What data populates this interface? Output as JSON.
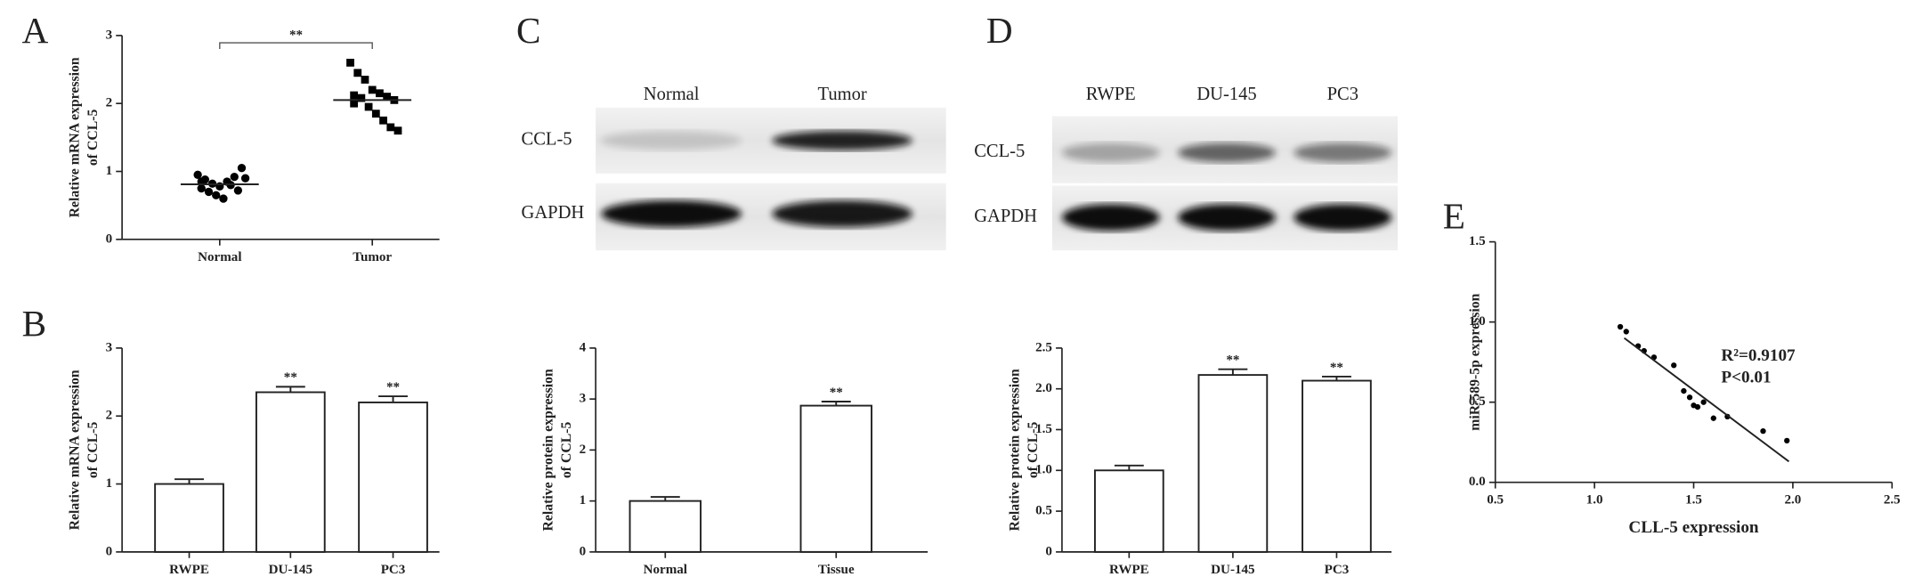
{
  "chart_data": [
    {
      "type": "dot",
      "panel": "A",
      "ylabel": [
        "Relative mRNA expression",
        "of CCL-5"
      ],
      "categories": [
        "Normal",
        "Tumor"
      ],
      "values": [
        [
          0.95,
          0.88,
          0.82,
          0.78,
          0.85,
          0.92,
          1.05,
          0.75,
          0.7,
          0.65,
          0.6,
          0.8,
          0.72,
          0.9,
          0.85
        ],
        [
          2.6,
          2.45,
          2.35,
          2.2,
          2.15,
          2.1,
          2.05,
          2.0,
          2.08,
          1.95,
          1.85,
          1.75,
          1.65,
          1.6,
          2.12
        ]
      ],
      "means": [
        0.81,
        2.05
      ],
      "markers": [
        "circle",
        "square"
      ],
      "color": "#000000",
      "ylim": [
        0,
        3
      ],
      "yticks": [
        0,
        1,
        2,
        3
      ],
      "significance": "**"
    },
    {
      "type": "bar",
      "panel": "B",
      "ylabel": [
        "Relative mRNA expression",
        "of CCL-5"
      ],
      "categories": [
        "RWPE",
        "DU-145",
        "PC3"
      ],
      "values": [
        1,
        2.35,
        2.2
      ],
      "errors": [
        0.07,
        0.08,
        0.09
      ],
      "color": "#ffffff",
      "ylim": [
        0,
        3
      ],
      "yticks": [
        0,
        1,
        2,
        3
      ],
      "significance": [
        {
          "index": 1,
          "label": "**"
        },
        {
          "index": 2,
          "label": "**"
        }
      ]
    },
    {
      "type": "bar",
      "panel": "C",
      "ylabel": [
        "Relative protein expression",
        "of CCL-5"
      ],
      "blot": {
        "lanes": [
          "Normal",
          "Tumor"
        ],
        "rows": [
          "CCL-5",
          "GAPDH"
        ]
      },
      "categories": [
        "Normal",
        "Tissue"
      ],
      "values": [
        1,
        2.87
      ],
      "errors": [
        0.08,
        0.08
      ],
      "color": "#ffffff",
      "ylim": [
        0,
        4
      ],
      "yticks": [
        0,
        1,
        2,
        3,
        4
      ],
      "significance": [
        {
          "index": 1,
          "label": "**"
        }
      ]
    },
    {
      "type": "bar",
      "panel": "D",
      "ylabel": [
        "Relative protein expression",
        "of CCL-5"
      ],
      "blot": {
        "lanes": [
          "RWPE",
          "DU-145",
          "PC3"
        ],
        "rows": [
          "CCL-5",
          "GAPDH"
        ]
      },
      "categories": [
        "RWPE",
        "DU-145",
        "PC3"
      ],
      "values": [
        1,
        2.17,
        2.1
      ],
      "errors": [
        0.06,
        0.07,
        0.05
      ],
      "color": "#ffffff",
      "ylim": [
        0,
        2.5
      ],
      "yticks": [
        0,
        0.5,
        {
          "value": 1,
          "label": "1.0"
        },
        1.5,
        {
          "value": 2,
          "label": "2.0"
        },
        2.5
      ],
      "significance": [
        {
          "index": 1,
          "label": "**"
        },
        {
          "index": 2,
          "label": "**"
        }
      ]
    },
    {
      "type": "scatter",
      "panel": "E",
      "xlabel": "CLL-5 expression",
      "ylabel": [
        "miR-589-5p expression"
      ],
      "x": [
        1.13,
        1.16,
        1.22,
        1.25,
        1.3,
        1.4,
        1.45,
        1.48,
        1.5,
        1.52,
        1.55,
        1.6,
        1.67,
        1.85,
        1.97
      ],
      "values": [
        0.97,
        0.94,
        0.85,
        0.82,
        0.78,
        0.73,
        0.57,
        0.53,
        0.48,
        0.47,
        0.5,
        0.4,
        0.41,
        0.32,
        0.26
      ],
      "fit": {
        "x": [
          1.15,
          1.98
        ],
        "y": [
          0.9,
          0.13
        ]
      },
      "color": "#000000",
      "annotations": [
        "R²=0.9107",
        "P<0.01"
      ],
      "xlim": [
        0.5,
        2.5
      ],
      "xticks": [
        0.5,
        {
          "value": 1,
          "label": "1.0"
        },
        1.5,
        {
          "value": 2,
          "label": "2.0"
        },
        2.5
      ],
      "ylim": [
        0,
        1.5
      ],
      "yticks": [
        {
          "value": 0,
          "label": "0.0"
        },
        0.5,
        {
          "value": 1,
          "label": "1.0"
        },
        1.5
      ]
    }
  ]
}
